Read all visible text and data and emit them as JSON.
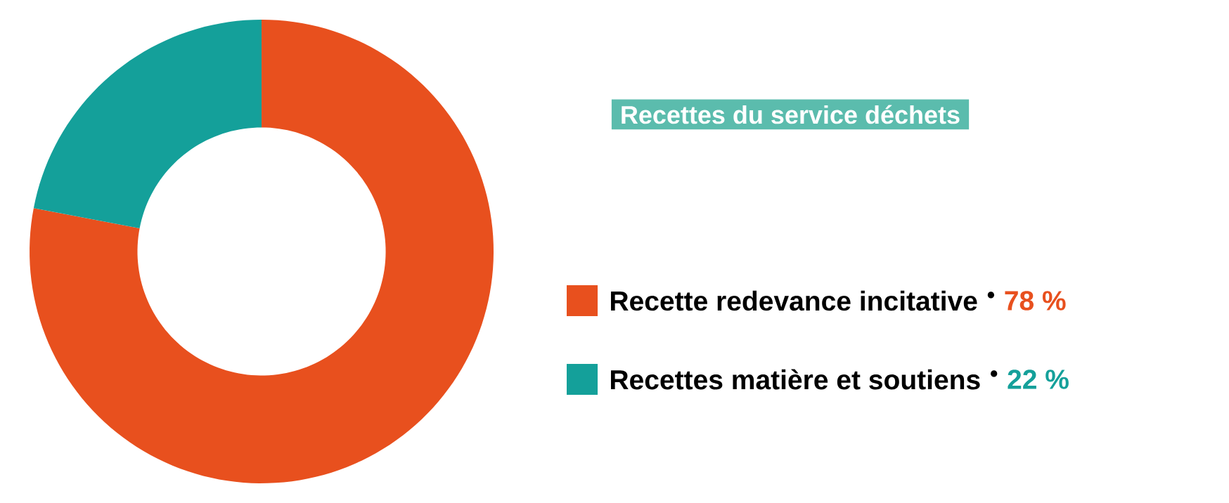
{
  "chart_data": {
    "type": "donut",
    "title": "Recettes du service déchets",
    "categories": [
      "Recette redevance incitative",
      "Recettes matière et soutiens"
    ],
    "values": [
      78,
      22
    ],
    "colors": [
      "#e8501e",
      "#14a09a"
    ],
    "value_labels": [
      "78 %",
      "22 %"
    ],
    "legend": "right"
  }
}
